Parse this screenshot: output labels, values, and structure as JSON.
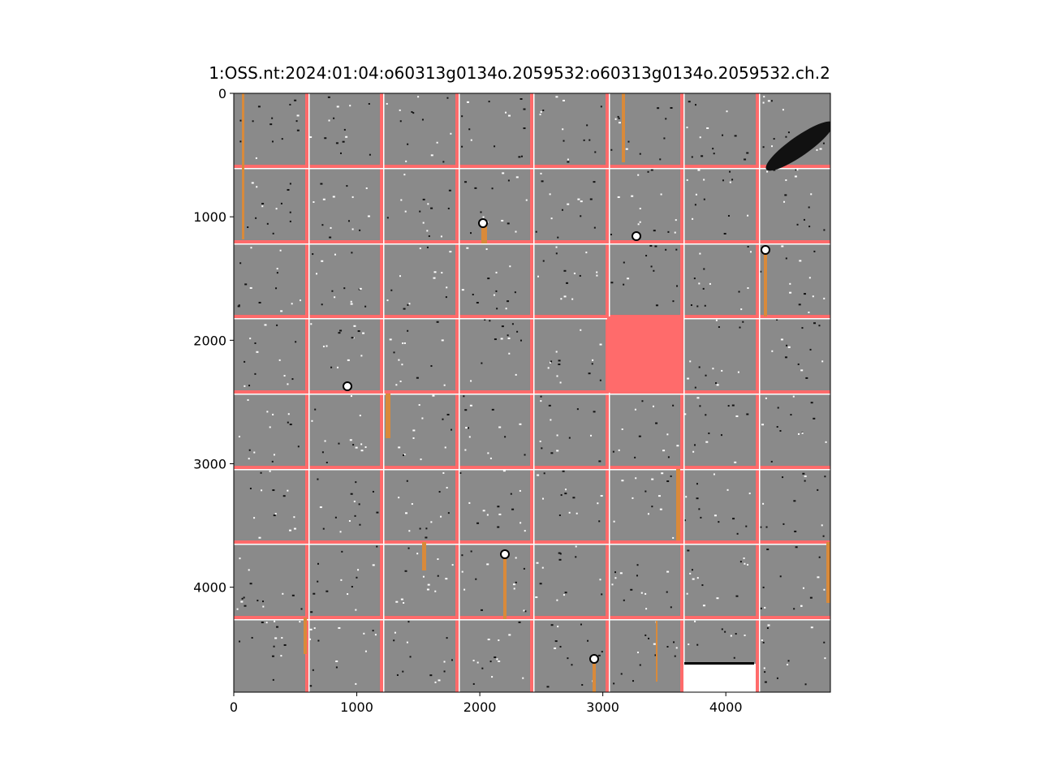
{
  "chart_data": {
    "type": "image",
    "title": "1:OSS.nt:2024:01:04:o60313g0134o.2059532:o60313g0134o.2059532.ch.2",
    "xlim": [
      0,
      4850
    ],
    "ylim": [
      4850,
      0
    ],
    "xticks": [
      0,
      1000,
      2000,
      3000,
      4000
    ],
    "yticks": [
      0,
      1000,
      2000,
      3000,
      4000
    ]
  }
}
